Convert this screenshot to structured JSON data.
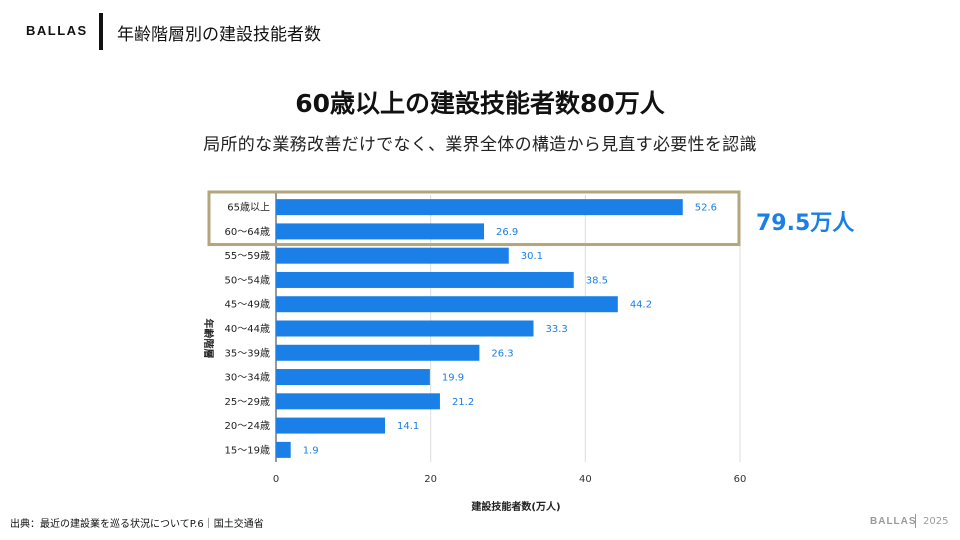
{
  "header": {
    "brand": "BALLAS",
    "title": "年齢階層別の建設技能者数"
  },
  "headline": {
    "title": "60歳以上の建設技能者数80万人",
    "subtitle": "局所的な業務改善だけでなく、業界全体の構造から見直す必要性を認識"
  },
  "highlight": {
    "label": "79.5万人",
    "categories": [
      "65歳以上",
      "60〜64歳"
    ],
    "border_color": "#b3a57c",
    "text_color": "#1a7fe6"
  },
  "chart_data": {
    "type": "bar",
    "orientation": "horizontal",
    "categories": [
      "65歳以上",
      "60〜64歳",
      "55〜59歳",
      "50〜54歳",
      "45〜49歳",
      "40〜44歳",
      "35〜39歳",
      "30〜34歳",
      "25〜29歳",
      "20〜24歳",
      "15〜19歳"
    ],
    "values": [
      52.6,
      26.9,
      30.1,
      38.5,
      44.2,
      33.3,
      26.3,
      19.9,
      21.2,
      14.1,
      1.9
    ],
    "xlabel": "建設技能者数(万人)",
    "ylabel": "年齢階層",
    "xlim": [
      0,
      60
    ],
    "xticks": [
      0,
      20,
      40,
      60
    ],
    "grid": true,
    "bar_color": "#1a7fe6",
    "data_labels": true
  },
  "footer": {
    "source": "出典：最近の建設業を巡る状況についてP.6｜国土交通省",
    "brand": "BALLAS",
    "year": "2025"
  }
}
